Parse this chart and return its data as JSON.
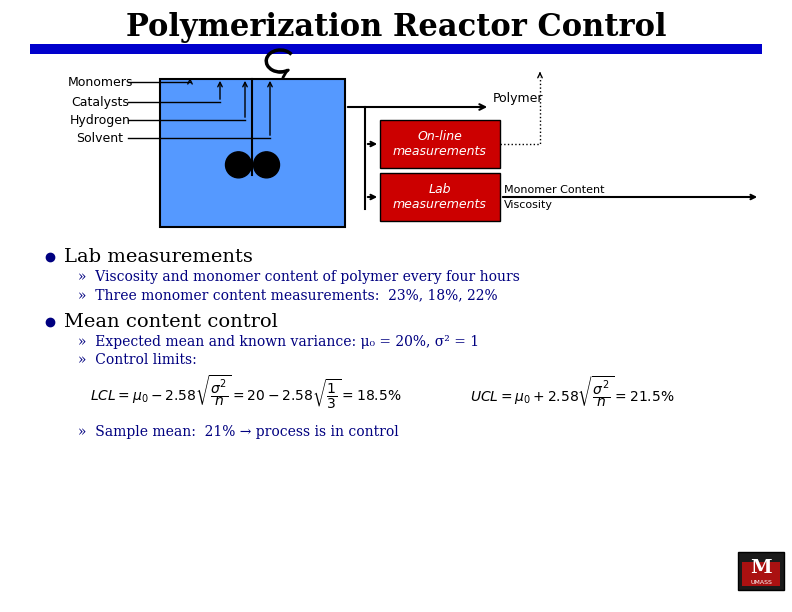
{
  "title": "Polymerization Reactor Control",
  "title_fontsize": 22,
  "title_font": "serif",
  "divider_color": "#0000CC",
  "bg_color": "#ffffff",
  "reactor_color": "#5599FF",
  "reactor_border": "#000000",
  "box_red": "#CC0000",
  "box_text_color": "#ffffff",
  "inputs": [
    "Monomers",
    "Catalysts",
    "Hydrogen",
    "Solvent"
  ],
  "online_box_text": "On-line\nmeasurements",
  "lab_box_text": "Lab\nmeasurements",
  "polymer_label": "Polymer",
  "monomer_content_label": "Monomer Content",
  "viscosity_label": "Viscosity",
  "bullet1_main": "Lab measurements",
  "bullet1_sub1": "Viscosity and monomer content of polymer every four hours",
  "bullet1_sub2": "Three monomer content measurements:  23%, 18%, 22%",
  "bullet2_main": "Mean content control",
  "bullet2_sub1": "Expected mean and known variance: μ₀ = 20%, σ² = 1",
  "bullet2_sub2": "Control limits:",
  "sample_line": "Sample mean:  21% → process is in control",
  "bullet_color": "#000080",
  "subtext_color": "#000080",
  "main_text_color": "#000000"
}
